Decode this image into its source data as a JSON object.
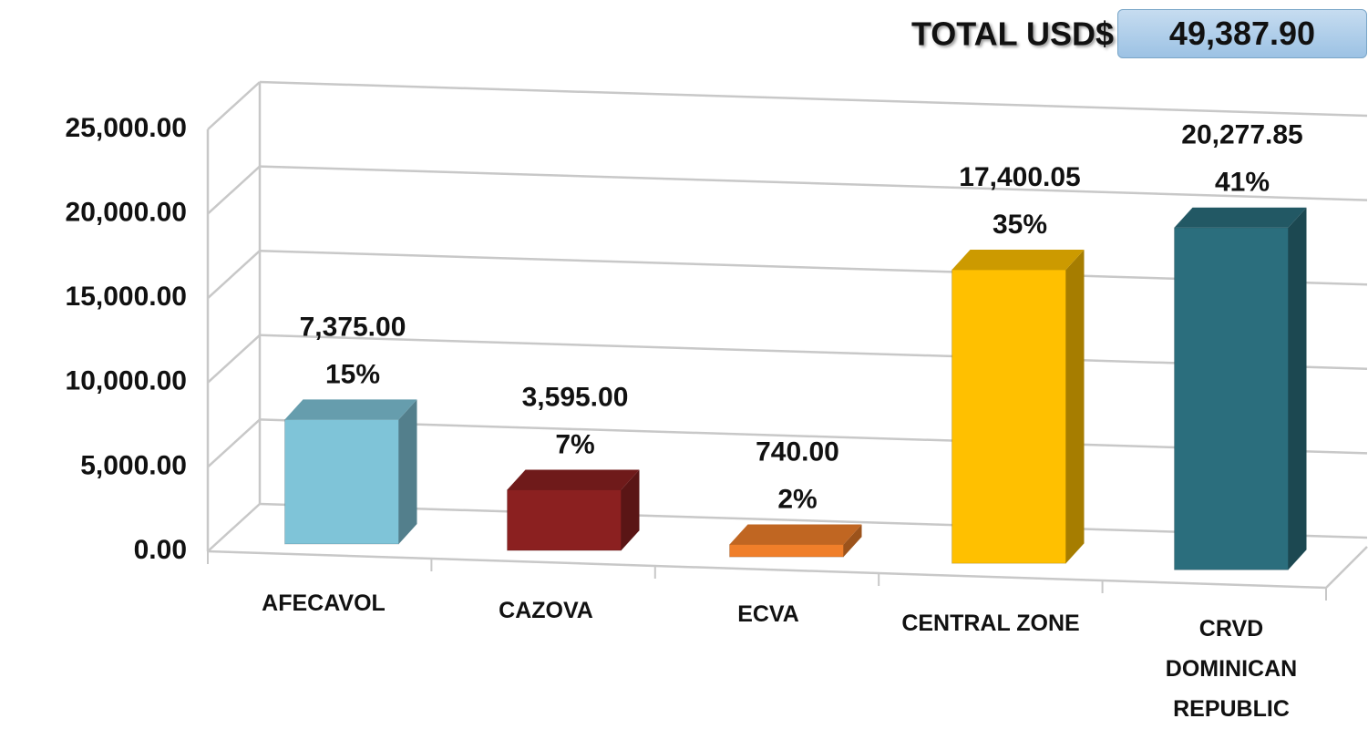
{
  "chart_data": {
    "type": "bar3d",
    "total": {
      "label": "TOTAL USD$",
      "value": 49387.9,
      "value_label": "49,387.90"
    },
    "categories": [
      "AFECAVOL",
      "CAZOVA",
      "ECVA",
      "CENTRAL ZONE",
      "CRVD DOMINICAN REPUBLIC"
    ],
    "values": [
      7375,
      3595,
      740,
      17400.05,
      20277.85
    ],
    "value_labels": [
      "7,375.00",
      "3,595.00",
      "740.00",
      "17,400.05",
      "20,277.85"
    ],
    "shares": [
      15,
      7,
      2,
      35,
      41
    ],
    "share_labels": [
      "15%",
      "7%",
      "2%",
      "35%",
      "41%"
    ],
    "colors": [
      "#7fc4d8",
      "#8b2020",
      "#f07f2a",
      "#ffc000",
      "#2b6e7d"
    ],
    "ylim": [
      0,
      25000
    ],
    "yticks": [
      {
        "value": 0,
        "label": "0.00"
      },
      {
        "value": 5000,
        "label": "5,000.00"
      },
      {
        "value": 10000,
        "label": "10,000.00"
      },
      {
        "value": 15000,
        "label": "15,000.00"
      },
      {
        "value": 20000,
        "label": "20,000.00"
      },
      {
        "value": 25000,
        "label": "25,000.00"
      }
    ],
    "grid": true
  }
}
